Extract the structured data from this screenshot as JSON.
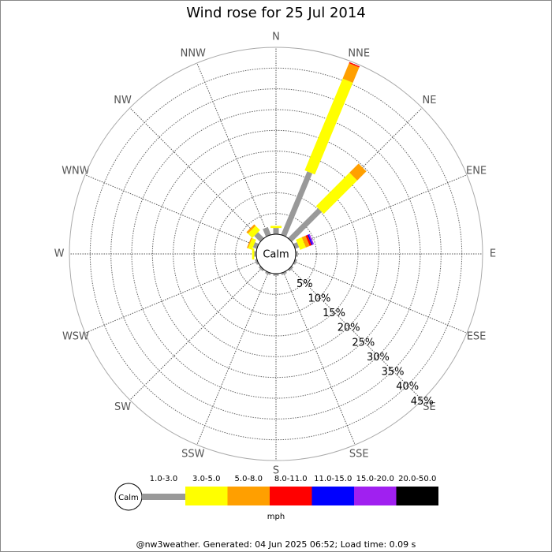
{
  "chart_data": {
    "type": "windrose",
    "title": "Wind rose for 25 Jul 2014",
    "directions": [
      "N",
      "NNE",
      "NE",
      "ENE",
      "E",
      "ESE",
      "SE",
      "SSE",
      "S",
      "SSW",
      "SW",
      "WSW",
      "W",
      "WNW",
      "NW",
      "NNW"
    ],
    "calm_label": "Calm",
    "rlim": [
      0,
      45
    ],
    "rticks": [
      {
        "value": 5,
        "label": "5%"
      },
      {
        "value": 10,
        "label": "10%"
      },
      {
        "value": 15,
        "label": "15%"
      },
      {
        "value": 20,
        "label": "20%"
      },
      {
        "value": 25,
        "label": "25%"
      },
      {
        "value": 30,
        "label": "30%"
      },
      {
        "value": 35,
        "label": "35%"
      },
      {
        "value": 40,
        "label": "40%"
      },
      {
        "value": 45,
        "label": "45%"
      }
    ],
    "series": [
      {
        "name": "1.0-3.0",
        "color": "#999999",
        "values": [
          1.5,
          16.5,
          10.2,
          1,
          0.5,
          0.5,
          0.5,
          0.5,
          0.5,
          0.5,
          0.5,
          0.5,
          0.5,
          1,
          2,
          2
        ]
      },
      {
        "name": "3.0-5.0",
        "color": "#ffff00",
        "values": [
          0.5,
          23.9,
          11.4,
          1.5,
          0,
          0,
          0,
          0,
          0,
          0,
          0,
          0,
          0.5,
          1,
          1.5,
          0
        ]
      },
      {
        "name": "5.0-8.0",
        "color": "#ff9f00",
        "values": [
          0,
          4,
          3.1,
          1,
          0,
          0,
          0,
          0,
          0,
          0,
          0,
          0,
          0,
          0.3,
          0.5,
          0
        ]
      },
      {
        "name": "8.0-11.0",
        "color": "#ff0000",
        "values": [
          0,
          0.3,
          0,
          0.5,
          0,
          0,
          0,
          0,
          0,
          0,
          0,
          0,
          0,
          0,
          0,
          0
        ]
      },
      {
        "name": "11.0-15.0",
        "color": "#0000ff",
        "values": [
          0,
          0,
          0,
          0.3,
          0,
          0,
          0,
          0,
          0,
          0,
          0,
          0,
          0,
          0,
          0,
          0
        ]
      },
      {
        "name": "15.0-20.0",
        "color": "#a020f0",
        "values": [
          0,
          0,
          0,
          0.3,
          0,
          0,
          0,
          0,
          0,
          0,
          0,
          0,
          0,
          0,
          0,
          0
        ]
      },
      {
        "name": "20.0-50.0",
        "color": "#000000",
        "values": [
          0,
          0,
          0,
          0,
          0,
          0,
          0,
          0,
          0,
          0,
          0,
          0,
          0,
          0,
          0,
          0
        ]
      }
    ],
    "legend_unit": "mph",
    "footer": "@nw3weather. Generated: 04 Jun 2025 06:52; Load time: 0.09 s"
  }
}
